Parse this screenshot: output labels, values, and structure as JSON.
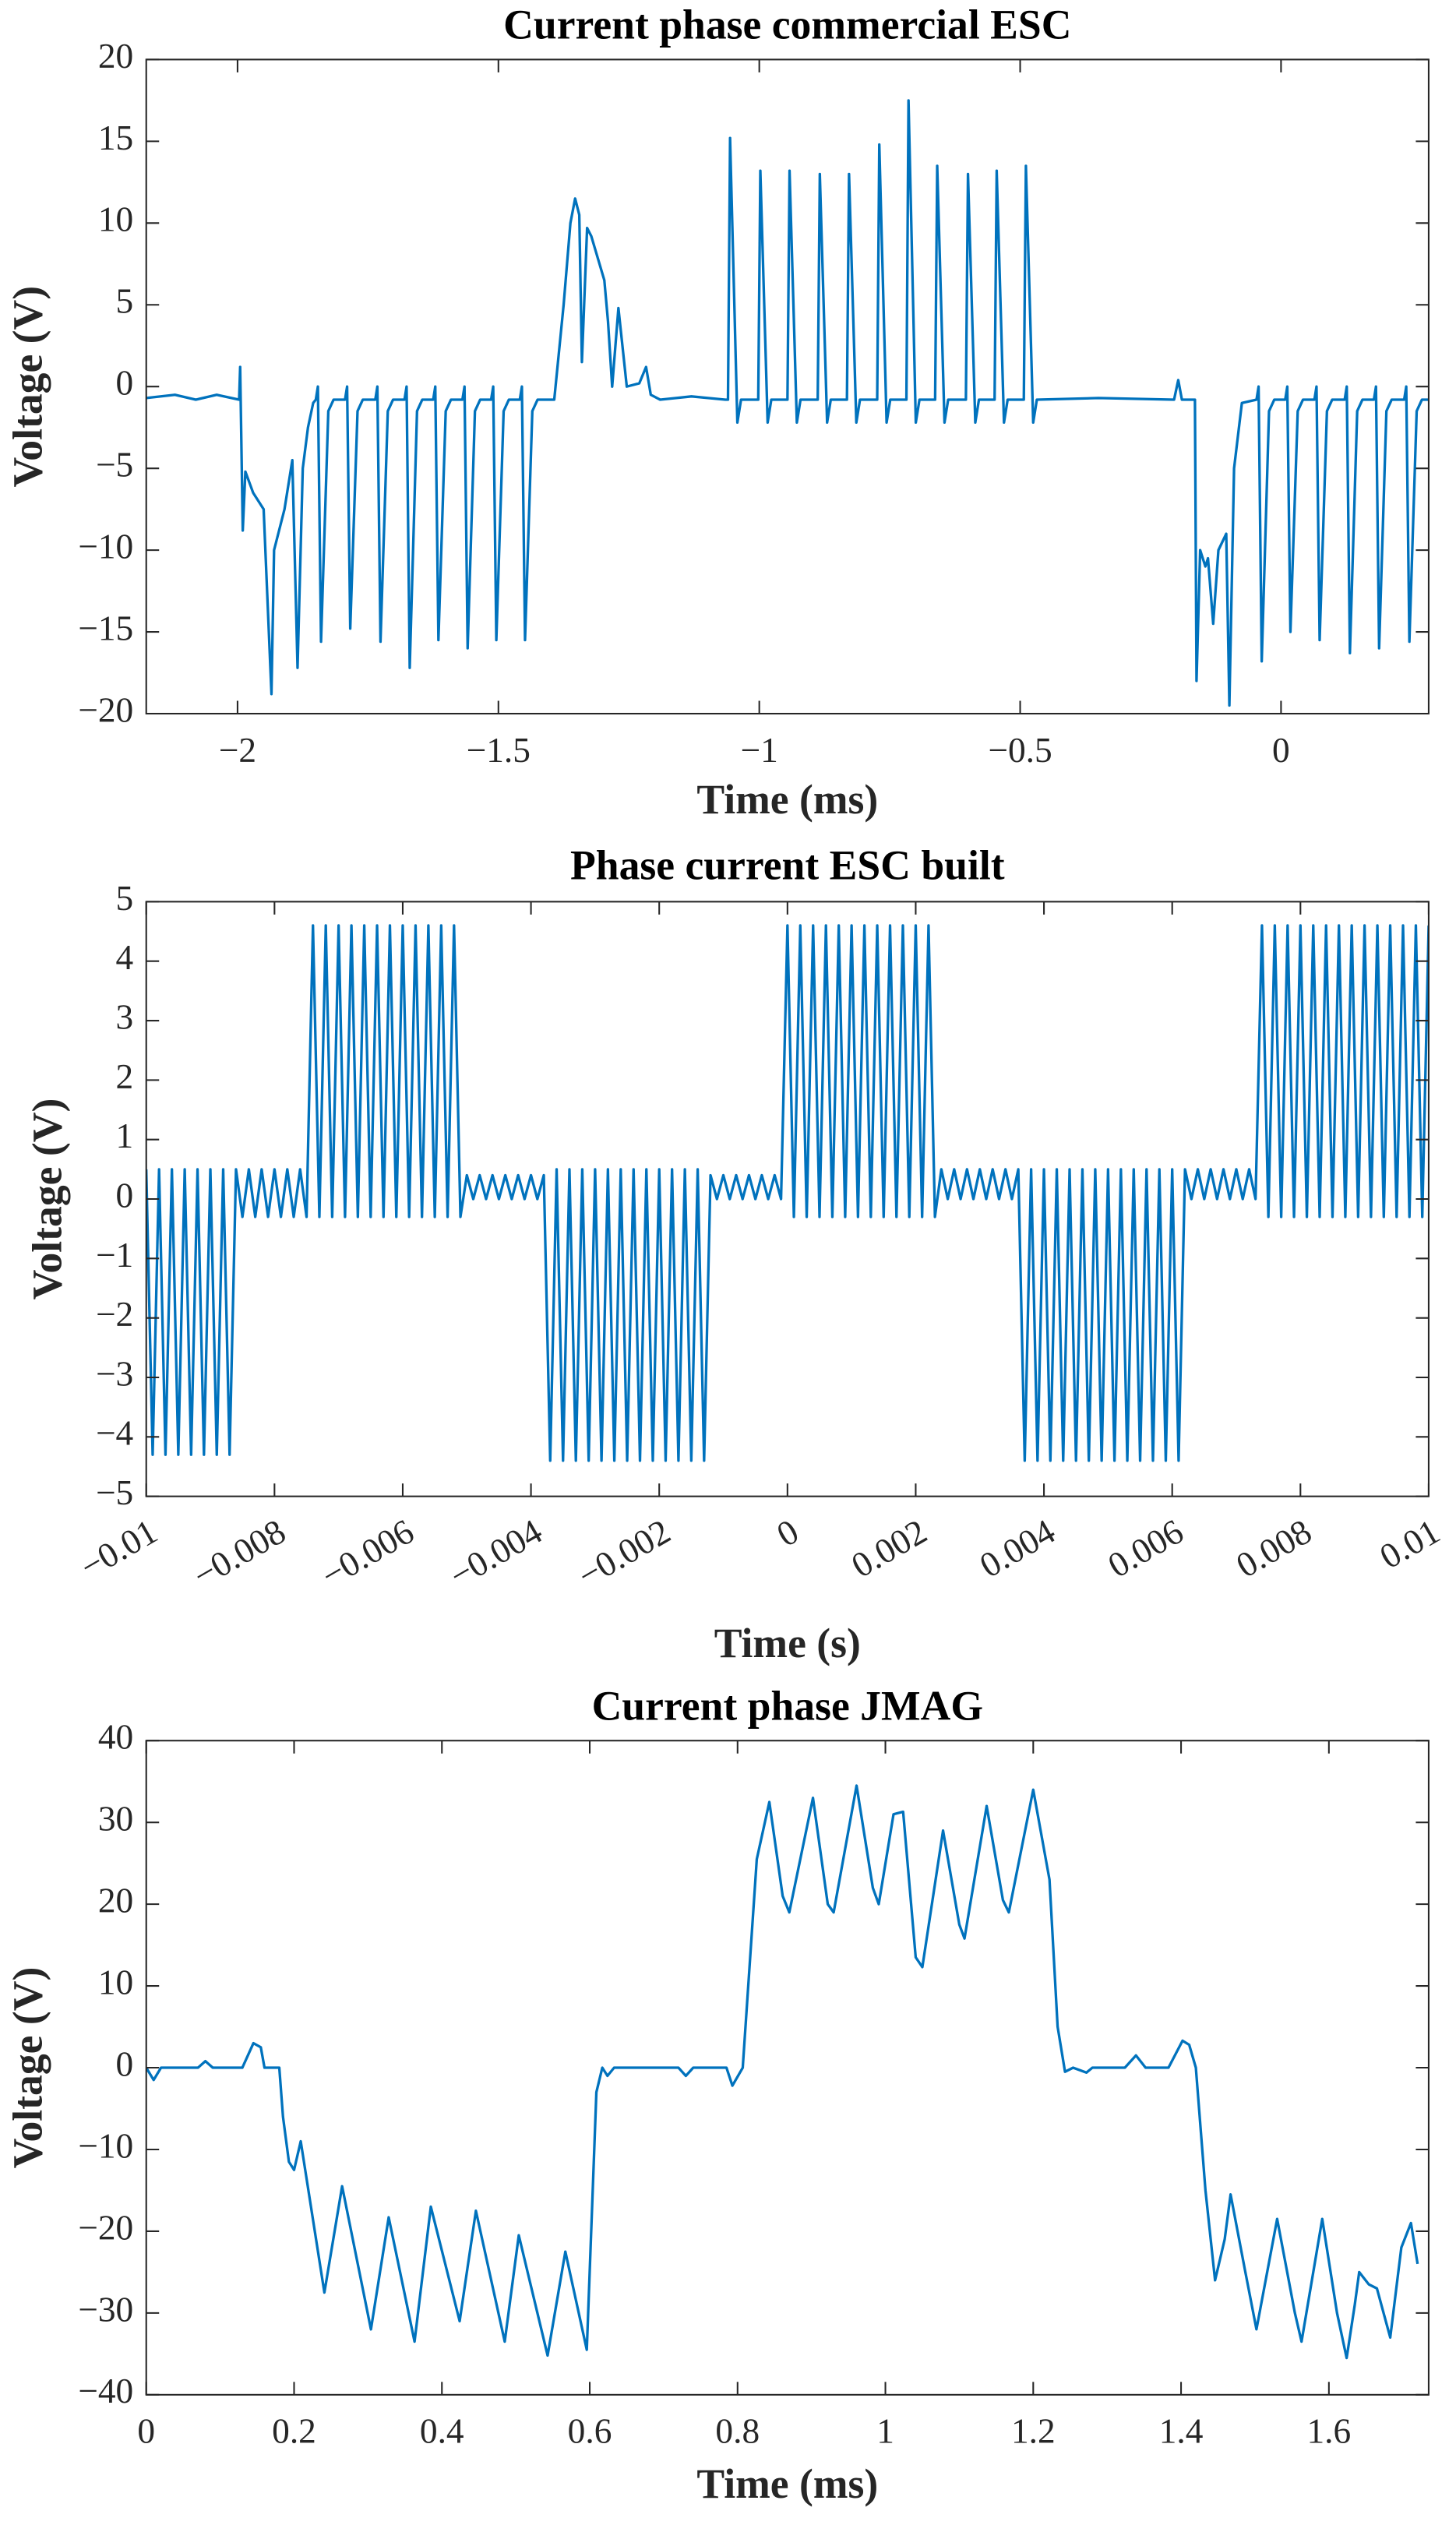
{
  "chart_data": [
    {
      "type": "line",
      "title": "Current phase commercial ESC",
      "xlabel": "Time (ms)",
      "ylabel": "Voltage (V)",
      "xlim": [
        -2.175,
        0.283
      ],
      "ylim": [
        -20,
        20
      ],
      "xticks": [
        {
          "value": -2,
          "label": "−2"
        },
        {
          "value": -1.5,
          "label": "−1.5"
        },
        {
          "value": -1,
          "label": "−1"
        },
        {
          "value": -0.5,
          "label": "−0.5"
        },
        0
      ],
      "yticks": [
        {
          "value": -20,
          "label": "−20"
        },
        {
          "value": -15,
          "label": "−15"
        },
        {
          "value": -10,
          "label": "−10"
        },
        {
          "value": -5,
          "label": "−5"
        },
        0,
        5,
        10,
        15,
        20
      ],
      "x": [
        -2.175,
        -2.12,
        -2.08,
        -2.04,
        -1.997,
        -1.995,
        -1.99,
        -1.985,
        -1.97,
        -1.95,
        -1.935,
        -1.93,
        -1.91,
        -1.895,
        -1.885,
        -1.875,
        -1.865,
        -1.855,
        -1.85,
        -1.846,
        -1.84,
        -1.826,
        -1.816,
        -1.794,
        -1.79,
        -1.784,
        -1.77,
        -1.76,
        -1.736,
        -1.732,
        -1.726,
        -1.712,
        -1.702,
        -1.68,
        -1.676,
        -1.67,
        -1.656,
        -1.646,
        -1.625,
        -1.621,
        -1.615,
        -1.601,
        -1.591,
        -1.569,
        -1.565,
        -1.559,
        -1.545,
        -1.535,
        -1.514,
        -1.51,
        -1.504,
        -1.49,
        -1.48,
        -1.459,
        -1.455,
        -1.449,
        -1.435,
        -1.425,
        -1.393,
        -1.375,
        -1.362,
        -1.353,
        -1.345,
        -1.34,
        -1.33,
        -1.322,
        -1.297,
        -1.29,
        -1.282,
        -1.27,
        -1.254,
        -1.23,
        -1.217,
        -1.208,
        -1.19,
        -1.13,
        -1.065,
        -1.06,
        -1.056,
        -1.042,
        -1.035,
        -1.002,
        -0.998,
        -0.984,
        -0.977,
        -0.946,
        -0.942,
        -0.928,
        -0.921,
        -0.888,
        -0.884,
        -0.87,
        -0.863,
        -0.832,
        -0.828,
        -0.814,
        -0.807,
        -0.774,
        -0.77,
        -0.756,
        -0.749,
        -0.718,
        -0.714,
        -0.7,
        -0.693,
        -0.663,
        -0.659,
        -0.645,
        -0.638,
        -0.604,
        -0.6,
        -0.586,
        -0.579,
        -0.549,
        -0.545,
        -0.531,
        -0.524,
        -0.493,
        -0.489,
        -0.475,
        -0.468,
        -0.35,
        -0.205,
        -0.197,
        -0.19,
        -0.165,
        -0.162,
        -0.155,
        -0.145,
        -0.14,
        -0.13,
        -0.12,
        -0.105,
        -0.099,
        -0.09,
        -0.075,
        -0.047,
        -0.043,
        -0.037,
        -0.023,
        -0.013,
        0.008,
        0.012,
        0.018,
        0.032,
        0.042,
        0.064,
        0.068,
        0.074,
        0.088,
        0.098,
        0.122,
        0.126,
        0.132,
        0.146,
        0.156,
        0.178,
        0.182,
        0.188,
        0.202,
        0.212,
        0.236,
        0.24,
        0.246,
        0.26,
        0.27,
        0.283
      ],
      "series": [
        {
          "color": "#0072bd",
          "values": [
            -0.7,
            -0.5,
            -0.8,
            -0.5,
            -0.8,
            1.2,
            -8.8,
            -5.2,
            -6.5,
            -7.5,
            -18.8,
            -10,
            -7.5,
            -4.5,
            -17.2,
            -5,
            -2.5,
            -1,
            -0.8,
            0,
            -15.6,
            -1.5,
            -0.8,
            -0.8,
            0,
            -14.8,
            -1.5,
            -0.8,
            -0.8,
            0,
            -15.6,
            -1.5,
            -0.8,
            -0.8,
            0,
            -17.2,
            -1.5,
            -0.8,
            -0.8,
            0,
            -15.5,
            -1.5,
            -0.8,
            -0.8,
            0,
            -16,
            -1.5,
            -0.8,
            -0.8,
            0,
            -15.5,
            -1.5,
            -0.8,
            -0.8,
            0,
            -15.5,
            -1.5,
            -0.8,
            -0.8,
            5,
            10,
            11.5,
            10.5,
            1.5,
            9.7,
            9.2,
            6.5,
            4,
            0,
            4.8,
            0,
            0.2,
            1.2,
            -0.5,
            -0.8,
            -0.6,
            -0.8,
            -0.8,
            15.2,
            -2.2,
            -0.8,
            -0.8,
            13.2,
            -2.2,
            -0.8,
            -0.8,
            13.2,
            -2.2,
            -0.8,
            -0.8,
            13,
            -2.2,
            -0.8,
            -0.8,
            13,
            -2.2,
            -0.8,
            -0.8,
            14.8,
            -2.2,
            -0.8,
            -0.8,
            17.5,
            -2.2,
            -0.8,
            -0.8,
            13.5,
            -2.2,
            -0.8,
            -0.8,
            13,
            -2.2,
            -0.8,
            -0.8,
            13.2,
            -2.2,
            -0.8,
            -0.8,
            13.5,
            -2.2,
            -0.8,
            -0.7,
            -0.8,
            0.4,
            -0.8,
            -0.8,
            -18,
            -10,
            -11,
            -10.5,
            -14.5,
            -10,
            -9,
            -19.5,
            -5,
            -1,
            -0.8,
            0,
            -16.8,
            -1.5,
            -0.8,
            -0.8,
            0,
            -15,
            -1.5,
            -0.8,
            -0.8,
            0,
            -15.5,
            -1.5,
            -0.8,
            -0.8,
            0,
            -16.3,
            -1.5,
            -0.8,
            -0.8,
            0,
            -16,
            -1.5,
            -0.8,
            -0.8,
            0,
            -15.6,
            -1.5,
            -0.8,
            -0.8
          ]
        }
      ]
    },
    {
      "type": "line",
      "title": "Phase current ESC built",
      "xlabel": "Time (s)",
      "ylabel": "Voltage (V)",
      "xlim": [
        -0.01,
        0.01
      ],
      "ylim": [
        -5,
        5
      ],
      "xticks": [
        {
          "value": -0.01,
          "label": "−0.01"
        },
        {
          "value": -0.008,
          "label": "−0.008"
        },
        {
          "value": -0.006,
          "label": "−0.006"
        },
        {
          "value": -0.004,
          "label": "−0.004"
        },
        {
          "value": -0.002,
          "label": "−0.002"
        },
        0,
        0.002,
        0.004,
        0.006,
        0.008,
        0.01
      ],
      "yticks": [
        {
          "value": -5,
          "label": "−5"
        },
        {
          "value": -4,
          "label": "−4"
        },
        {
          "value": -3,
          "label": "−3"
        },
        {
          "value": -2,
          "label": "−2"
        },
        {
          "value": -1,
          "label": "−1"
        },
        0,
        1,
        2,
        3,
        4,
        5
      ],
      "x": [
        -0.01,
        -0.0099,
        -0.0098,
        -0.0097,
        -0.0096,
        -0.0095,
        -0.0094,
        -0.0093,
        -0.0092,
        -0.0091,
        -0.009,
        -0.0089,
        -0.0088,
        -0.0087,
        -0.0086,
        -0.0085,
        -0.0084,
        -0.0083,
        -0.0082,
        -0.0081,
        -0.008,
        -0.0079,
        -0.0078,
        -0.0077,
        -0.0076,
        -0.0075,
        -0.0074,
        -0.0073,
        -0.0072,
        -0.0071,
        -0.007,
        -0.0069,
        -0.0068,
        -0.0067,
        -0.0066,
        -0.0065,
        -0.0064,
        -0.0063,
        -0.0062,
        -0.0061,
        -0.006,
        -0.0059,
        -0.0058,
        -0.0057,
        -0.0056,
        -0.0055,
        -0.0054,
        -0.0053,
        -0.0052,
        -0.0051,
        -0.005,
        -0.0049,
        -0.0048,
        -0.0047,
        -0.0046,
        -0.0045,
        -0.0044,
        -0.0043,
        -0.0042,
        -0.0041,
        -0.004,
        -0.0039,
        -0.0038,
        -0.0037,
        -0.0036,
        -0.0035,
        -0.0034,
        -0.0033,
        -0.0032,
        -0.0031,
        -0.003,
        -0.0029,
        -0.0028,
        -0.0027,
        -0.0026,
        -0.0025,
        -0.0024,
        -0.0023,
        -0.0022,
        -0.0021,
        -0.002,
        -0.0019,
        -0.0018,
        -0.0017,
        -0.0016,
        -0.0015,
        -0.0014,
        -0.0013,
        -0.0012,
        -0.0011,
        -0.001,
        -0.0009,
        -0.0008,
        -0.0007,
        -0.0006,
        -0.0005,
        -0.0004,
        -0.0003,
        -0.0002,
        -0.0001,
        0,
        0.0001,
        0.0002,
        0.0003,
        0.0004,
        0.0005,
        0.0006,
        0.0007,
        0.0008,
        0.0009,
        0.001,
        0.0011,
        0.0012,
        0.0013,
        0.0014,
        0.0015,
        0.0016,
        0.0017,
        0.0018,
        0.0019,
        0.002,
        0.0021,
        0.0022,
        0.0023,
        0.0024,
        0.0025,
        0.0026,
        0.0027,
        0.0028,
        0.0029,
        0.003,
        0.0031,
        0.0032,
        0.0033,
        0.0034,
        0.0035,
        0.0036,
        0.0037,
        0.0038,
        0.0039,
        0.004,
        0.0041,
        0.0042,
        0.0043,
        0.0044,
        0.0045,
        0.0046,
        0.0047,
        0.0048,
        0.0049,
        0.005,
        0.0051,
        0.0052,
        0.0053,
        0.0054,
        0.0055,
        0.0056,
        0.0057,
        0.0058,
        0.0059,
        0.006,
        0.0061,
        0.0062,
        0.0063,
        0.0064,
        0.0065,
        0.0066,
        0.0067,
        0.0068,
        0.0069,
        0.007,
        0.0071,
        0.0072,
        0.0073,
        0.0074,
        0.0075,
        0.0076,
        0.0077,
        0.0078,
        0.0079,
        0.008,
        0.0081,
        0.0082,
        0.0083,
        0.0084,
        0.0085,
        0.0086,
        0.0087,
        0.0088,
        0.0089,
        0.009,
        0.0091,
        0.0092,
        0.0093,
        0.0094,
        0.0095,
        0.0096,
        0.0097,
        0.0098,
        0.0099,
        0.01
      ],
      "series": [
        {
          "color": "#0072bd",
          "values": [
            0.5,
            -4.3,
            0.5,
            -4.3,
            0.5,
            -4.3,
            0.5,
            -4.3,
            0.5,
            -4.3,
            0.5,
            -4.3,
            0.5,
            -4.3,
            0.5,
            -0.3,
            0.5,
            -0.3,
            0.5,
            -0.3,
            0.5,
            -0.3,
            0.5,
            -0.3,
            0.5,
            -0.3,
            4.6,
            -0.3,
            4.6,
            -0.3,
            4.6,
            -0.3,
            4.6,
            -0.3,
            4.6,
            -0.3,
            4.6,
            -0.3,
            4.6,
            -0.3,
            4.6,
            -0.3,
            4.6,
            -0.3,
            4.6,
            -0.3,
            4.6,
            -0.3,
            4.6,
            -0.3,
            0.4,
            0,
            0.4,
            0,
            0.4,
            0,
            0.4,
            0,
            0.4,
            0,
            0.4,
            0,
            0.4,
            -4.4,
            0.5,
            -4.4,
            0.5,
            -4.4,
            0.5,
            -4.4,
            0.5,
            -4.4,
            0.5,
            -4.4,
            0.5,
            -4.4,
            0.5,
            -4.4,
            0.5,
            -4.4,
            0.5,
            -4.4,
            0.5,
            -4.4,
            0.5,
            -4.4,
            0.5,
            -4.4,
            0.4,
            0,
            0.4,
            0,
            0.4,
            0,
            0.4,
            0,
            0.4,
            0,
            0.4,
            0,
            4.6,
            -0.3,
            4.6,
            -0.3,
            4.6,
            -0.3,
            4.6,
            -0.3,
            4.6,
            -0.3,
            4.6,
            -0.3,
            4.6,
            -0.3,
            4.6,
            -0.3,
            4.6,
            -0.3,
            4.6,
            -0.3,
            4.6,
            -0.3,
            4.6,
            -0.3,
            0.5,
            0,
            0.5,
            0,
            0.5,
            0,
            0.5,
            0,
            0.5,
            0,
            0.5,
            0,
            0.5,
            -4.4,
            0.5,
            -4.4,
            0.5,
            -4.4,
            0.5,
            -4.4,
            0.5,
            -4.4,
            0.5,
            -4.4,
            0.5,
            -4.4,
            0.5,
            -4.4,
            0.5,
            -4.4,
            0.5,
            -4.4,
            0.5,
            -4.4,
            0.5,
            -4.4,
            0.5,
            -4.4,
            0.5,
            0,
            0.5,
            0,
            0.5,
            0,
            0.5,
            0,
            0.5,
            0,
            0.5,
            0,
            4.6,
            -0.3,
            4.6,
            -0.3,
            4.6,
            -0.3,
            4.6,
            -0.3,
            4.6,
            -0.3,
            4.6,
            -0.3,
            4.6,
            -0.3,
            4.6,
            -0.3,
            4.6,
            -0.3,
            4.6,
            -0.3,
            4.6,
            -0.3,
            4.6,
            -0.3,
            4.6,
            -0.3,
            4.6
          ]
        }
      ]
    },
    {
      "type": "line",
      "title": "Current phase JMAG",
      "xlabel": "Time (ms)",
      "ylabel": "Voltage (V)",
      "xlim": [
        0,
        1.735
      ],
      "ylim": [
        -40,
        40
      ],
      "xticks": [
        0,
        0.2,
        0.4,
        0.6,
        0.8,
        1,
        1.2,
        1.4,
        1.6
      ],
      "yticks": [
        {
          "value": -40,
          "label": "−40"
        },
        {
          "value": -30,
          "label": "−30"
        },
        {
          "value": -20,
          "label": "−20"
        },
        {
          "value": -10,
          "label": "−10"
        },
        0,
        10,
        20,
        30,
        40
      ],
      "x": [
        0,
        0.01,
        0.02,
        0.07,
        0.08,
        0.09,
        0.13,
        0.145,
        0.155,
        0.16,
        0.18,
        0.185,
        0.193,
        0.2,
        0.209,
        0.241,
        0.265,
        0.304,
        0.328,
        0.363,
        0.385,
        0.424,
        0.446,
        0.485,
        0.504,
        0.543,
        0.567,
        0.596,
        0.609,
        0.617,
        0.624,
        0.633,
        0.72,
        0.73,
        0.74,
        0.785,
        0.793,
        0.807,
        0.826,
        0.843,
        0.861,
        0.87,
        0.902,
        0.922,
        0.93,
        0.961,
        0.983,
        0.991,
        1.011,
        1.024,
        1.041,
        1.05,
        1.078,
        1.1,
        1.107,
        1.137,
        1.159,
        1.167,
        1.2,
        1.222,
        1.233,
        1.243,
        1.254,
        1.272,
        1.28,
        1.324,
        1.339,
        1.352,
        1.383,
        1.402,
        1.411,
        1.42,
        1.433,
        1.446,
        1.459,
        1.467,
        1.487,
        1.502,
        1.53,
        1.554,
        1.563,
        1.591,
        1.611,
        1.624,
        1.635,
        1.641,
        1.654,
        1.665,
        1.683,
        1.698,
        1.711,
        1.72
      ],
      "series": [
        {
          "color": "#0072bd",
          "values": [
            0,
            -1.5,
            0,
            0,
            0.8,
            0,
            0,
            3,
            2.5,
            0,
            0,
            -6,
            -11.5,
            -12.5,
            -9,
            -27.5,
            -14.5,
            -32,
            -18.3,
            -33.5,
            -17,
            -31,
            -17.5,
            -33.5,
            -20.5,
            -35.2,
            -22.5,
            -34.5,
            -3,
            0,
            -1,
            0,
            0,
            -1,
            0,
            0,
            -2.2,
            0,
            25.5,
            32.5,
            21,
            19,
            33,
            20,
            19,
            34.5,
            22,
            20,
            31,
            31.3,
            13.5,
            12.3,
            29,
            17.5,
            15.8,
            32,
            20.5,
            19,
            34,
            23,
            5,
            -0.5,
            0,
            -0.6,
            0,
            0,
            1.5,
            0,
            0,
            3.3,
            2.8,
            0,
            -15,
            -26,
            -21,
            -15.5,
            -25,
            -32,
            -18.5,
            -30,
            -33.5,
            -18.5,
            -30,
            -35.5,
            -29,
            -25,
            -26.5,
            -27,
            -33,
            -22,
            -19,
            -24
          ]
        }
      ]
    }
  ]
}
